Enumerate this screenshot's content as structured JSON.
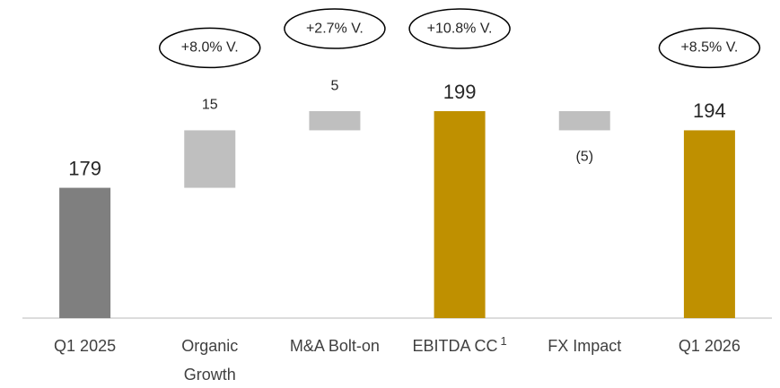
{
  "chart_data": {
    "type": "waterfall",
    "categories": [
      "Q1 2025",
      "Organic Growth",
      "M&A Bolt-on",
      "EBITDA CC",
      "FX Impact",
      "Q1 2026"
    ],
    "category_notes": {
      "3": "1"
    },
    "measure": [
      "absolute",
      "relative",
      "relative",
      "total",
      "relative",
      "total"
    ],
    "values": [
      179,
      15,
      5,
      199,
      -5,
      194
    ],
    "value_labels": [
      "179",
      "15",
      "5",
      "199",
      "(5)",
      "194"
    ],
    "colors": [
      "#7f7f7f",
      "#bfbfbf",
      "#bfbfbf",
      "#bf9000",
      "#bfbfbf",
      "#bf9000"
    ],
    "annotations": [
      null,
      "+8.0% V.",
      "+2.7% V.",
      "+10.8% V.",
      null,
      "+8.5% V."
    ],
    "ylim": [
      145,
      228
    ]
  }
}
